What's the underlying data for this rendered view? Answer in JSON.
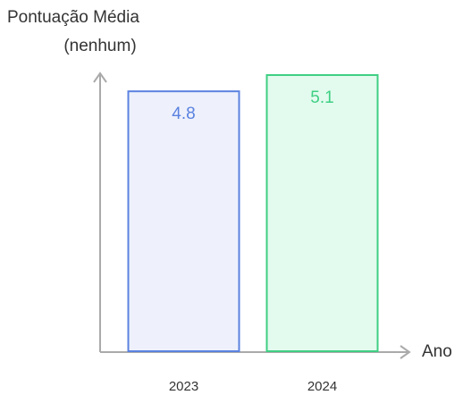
{
  "chart_data": {
    "type": "bar",
    "ylabel": [
      "Pontuação Média",
      "(nenhum)"
    ],
    "xlabel": "Ano",
    "categories": [
      "2023",
      "2024"
    ],
    "values": [
      4.8,
      5.1
    ],
    "colors": [
      "#5b82e0",
      "#3fcf83"
    ],
    "fills": [
      "#eef1fc",
      "#e2fbee"
    ],
    "ylim": [
      0,
      5.1
    ]
  }
}
